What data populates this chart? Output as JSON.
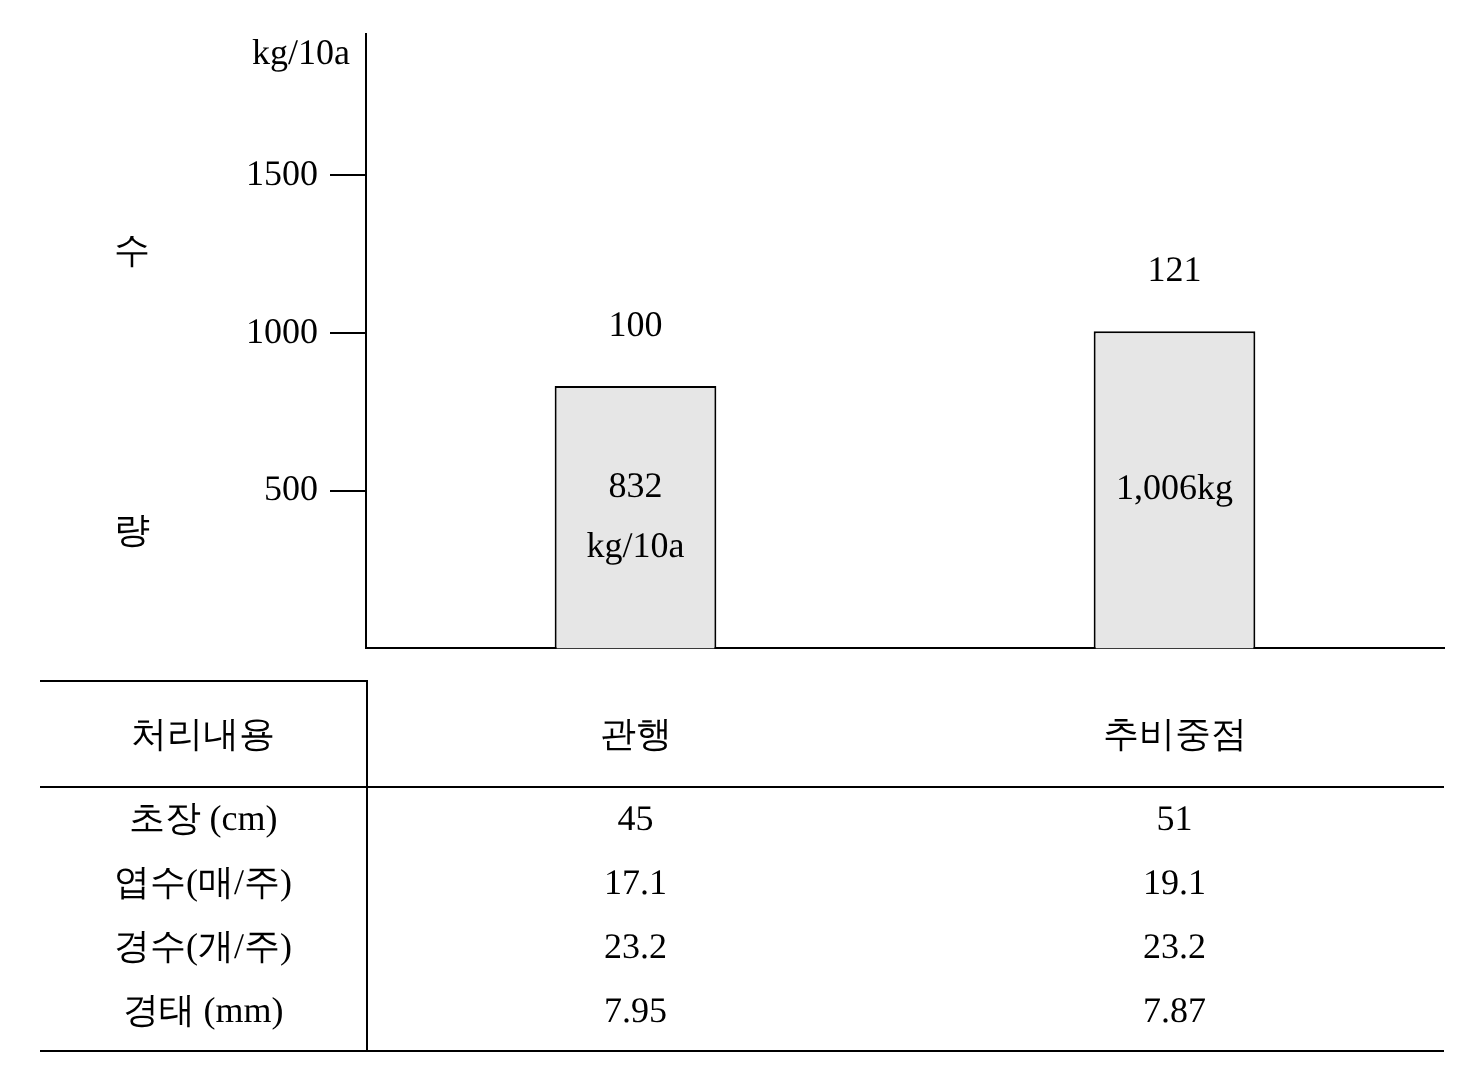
{
  "chart_data": {
    "type": "bar",
    "ylabel": "kg/10a",
    "xlabel": "처리내용",
    "categories": [
      "관행",
      "추비중점"
    ],
    "values": [
      832,
      1006
    ],
    "color": "#e6e6e6",
    "value_labels": [
      "832 kg/10a",
      "1,006kg"
    ],
    "ylim": [
      0,
      1950
    ],
    "yticks": [
      500,
      1000,
      1500
    ],
    "grid": false,
    "annotations": [
      "수",
      "량",
      "100",
      "121",
      "초장 (cm)",
      "45",
      "51",
      "엽수(매/주)",
      "17.1",
      "19.1",
      "경수(개/주)",
      "23.2",
      "23.2",
      "경태 (mm)",
      "7.95",
      "7.87"
    ]
  }
}
